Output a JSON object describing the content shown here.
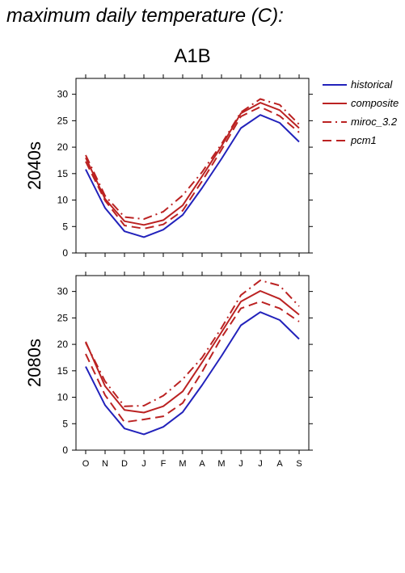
{
  "page": {
    "title": "maximum daily temperature (C):",
    "scenario": "A1B"
  },
  "colors": {
    "historical": "#2222bb",
    "projection": "#bb2222",
    "axis": "#000000"
  },
  "legend_items": [
    {
      "label": "historical",
      "color": "#2222bb",
      "dash": "solid"
    },
    {
      "label": "composite",
      "color": "#bb2222",
      "dash": "solid"
    },
    {
      "label": "miroc_3.2",
      "color": "#bb2222",
      "dash": "dashdot"
    },
    {
      "label": "pcm1",
      "color": "#bb2222",
      "dash": "dash"
    }
  ],
  "chart_data": [
    {
      "type": "line",
      "ylabel": "2040s",
      "xlabel": "",
      "categories": [
        "O",
        "N",
        "D",
        "J",
        "F",
        "M",
        "A",
        "M",
        "J",
        "J",
        "A",
        "S"
      ],
      "ylim": [
        0,
        33
      ],
      "yticks": [
        0,
        5,
        10,
        15,
        20,
        25,
        30
      ],
      "legend": "right",
      "series": [
        {
          "name": "historical",
          "style": "solid",
          "color": "#2222bb",
          "values": [
            15.8,
            8.5,
            4.1,
            3.0,
            4.4,
            7.2,
            12.3,
            17.8,
            23.6,
            26.1,
            24.6,
            21.0
          ]
        },
        {
          "name": "composite",
          "style": "solid",
          "color": "#bb2222",
          "values": [
            18.0,
            10.2,
            6.0,
            5.3,
            6.2,
            9.0,
            14.5,
            20.2,
            26.4,
            28.4,
            27.0,
            23.6
          ]
        },
        {
          "name": "miroc_3.2",
          "style": "dashdot",
          "color": "#bb2222",
          "values": [
            18.5,
            10.8,
            6.8,
            6.4,
            7.8,
            10.9,
            15.3,
            20.6,
            26.6,
            29.1,
            28.0,
            24.3
          ]
        },
        {
          "name": "pcm1",
          "style": "dash",
          "color": "#bb2222",
          "values": [
            17.3,
            9.9,
            5.2,
            4.6,
            5.4,
            8.0,
            13.6,
            19.5,
            25.8,
            27.6,
            25.9,
            22.8
          ]
        }
      ]
    },
    {
      "type": "line",
      "ylabel": "2080s",
      "xlabel": "",
      "categories": [
        "O",
        "N",
        "D",
        "J",
        "F",
        "M",
        "A",
        "M",
        "J",
        "J",
        "A",
        "S"
      ],
      "ylim": [
        0,
        33
      ],
      "yticks": [
        0,
        5,
        10,
        15,
        20,
        25,
        30
      ],
      "legend": "right",
      "series": [
        {
          "name": "historical",
          "style": "solid",
          "color": "#2222bb",
          "values": [
            15.8,
            8.5,
            4.1,
            3.0,
            4.4,
            7.2,
            12.3,
            17.8,
            23.6,
            26.1,
            24.6,
            21.0
          ]
        },
        {
          "name": "composite",
          "style": "solid",
          "color": "#bb2222",
          "values": [
            20.5,
            12.1,
            7.6,
            7.1,
            8.3,
            11.1,
            16.6,
            22.3,
            28.1,
            30.1,
            28.6,
            25.6
          ]
        },
        {
          "name": "miroc_3.2",
          "style": "dashdot",
          "color": "#bb2222",
          "values": [
            20.3,
            13.0,
            8.3,
            8.4,
            10.3,
            13.4,
            17.5,
            23.1,
            29.3,
            32.1,
            31.1,
            27.2
          ]
        },
        {
          "name": "pcm1",
          "style": "dash",
          "color": "#bb2222",
          "values": [
            18.2,
            10.4,
            5.3,
            5.8,
            6.4,
            8.9,
            14.8,
            21.3,
            26.8,
            28.1,
            26.8,
            24.3
          ]
        }
      ]
    }
  ]
}
